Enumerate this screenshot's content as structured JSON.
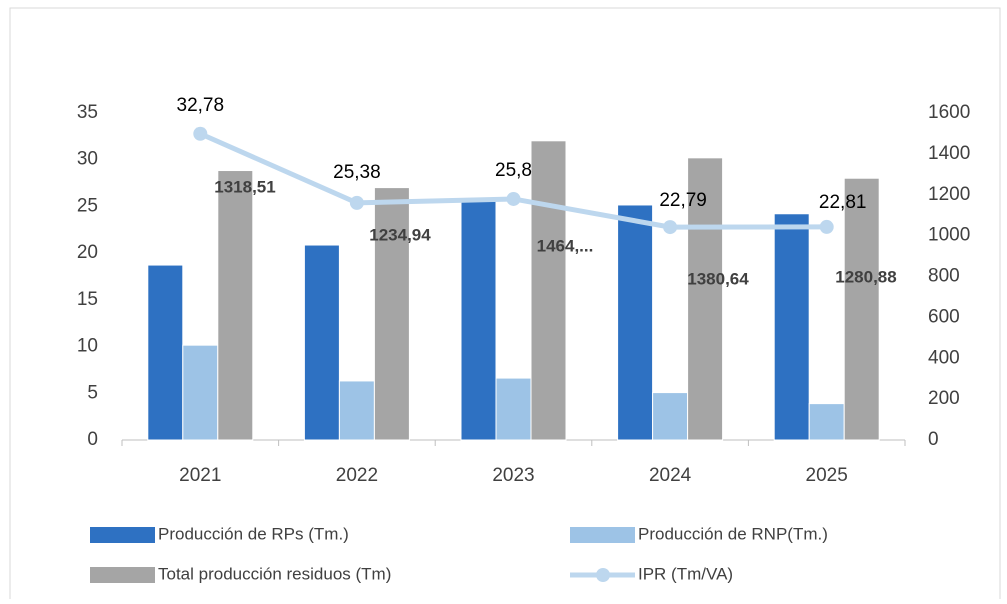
{
  "chart_data": {
    "type": "bar-line",
    "categories": [
      "2021",
      "2022",
      "2023",
      "2024",
      "2025"
    ],
    "series": [
      {
        "name": "Producción de RPs (Tm.)",
        "color": "#2e71c2",
        "axis": "y2",
        "values": [
          856,
          954,
          1172,
          1150,
          1107
        ]
      },
      {
        "name": "Producción de RNP(Tm.)",
        "color": "#9dc3e6",
        "axis": "y2",
        "values": [
          464,
          289,
          303,
          232,
          178
        ]
      },
      {
        "name": "Total producción residuos (Tm)",
        "color": "#a5a5a5",
        "axis": "y2",
        "values": [
          1318.51,
          1234.94,
          1464,
          1380.64,
          1280.88
        ],
        "value_labels": [
          "1318,51",
          "1234,94",
          "1464,...",
          "1380,64",
          "1280,88"
        ]
      },
      {
        "name": "IPR (Tm/VA)",
        "color": "#bdd7ee",
        "type": "line",
        "values": [
          32.78,
          25.38,
          25.8,
          22.79,
          22.81
        ],
        "value_labels": [
          "32,78",
          "25,38",
          "25,8",
          "22,79",
          "22,81"
        ]
      }
    ],
    "ylim": [
      0,
      35
    ],
    "yticks": [
      0,
      5,
      10,
      15,
      20,
      25,
      30,
      35
    ],
    "y2lim": [
      0,
      1600
    ],
    "y2ticks": [
      0,
      200,
      400,
      600,
      800,
      1000,
      1200,
      1400,
      1600
    ],
    "grid": false,
    "legend": "bottom"
  }
}
